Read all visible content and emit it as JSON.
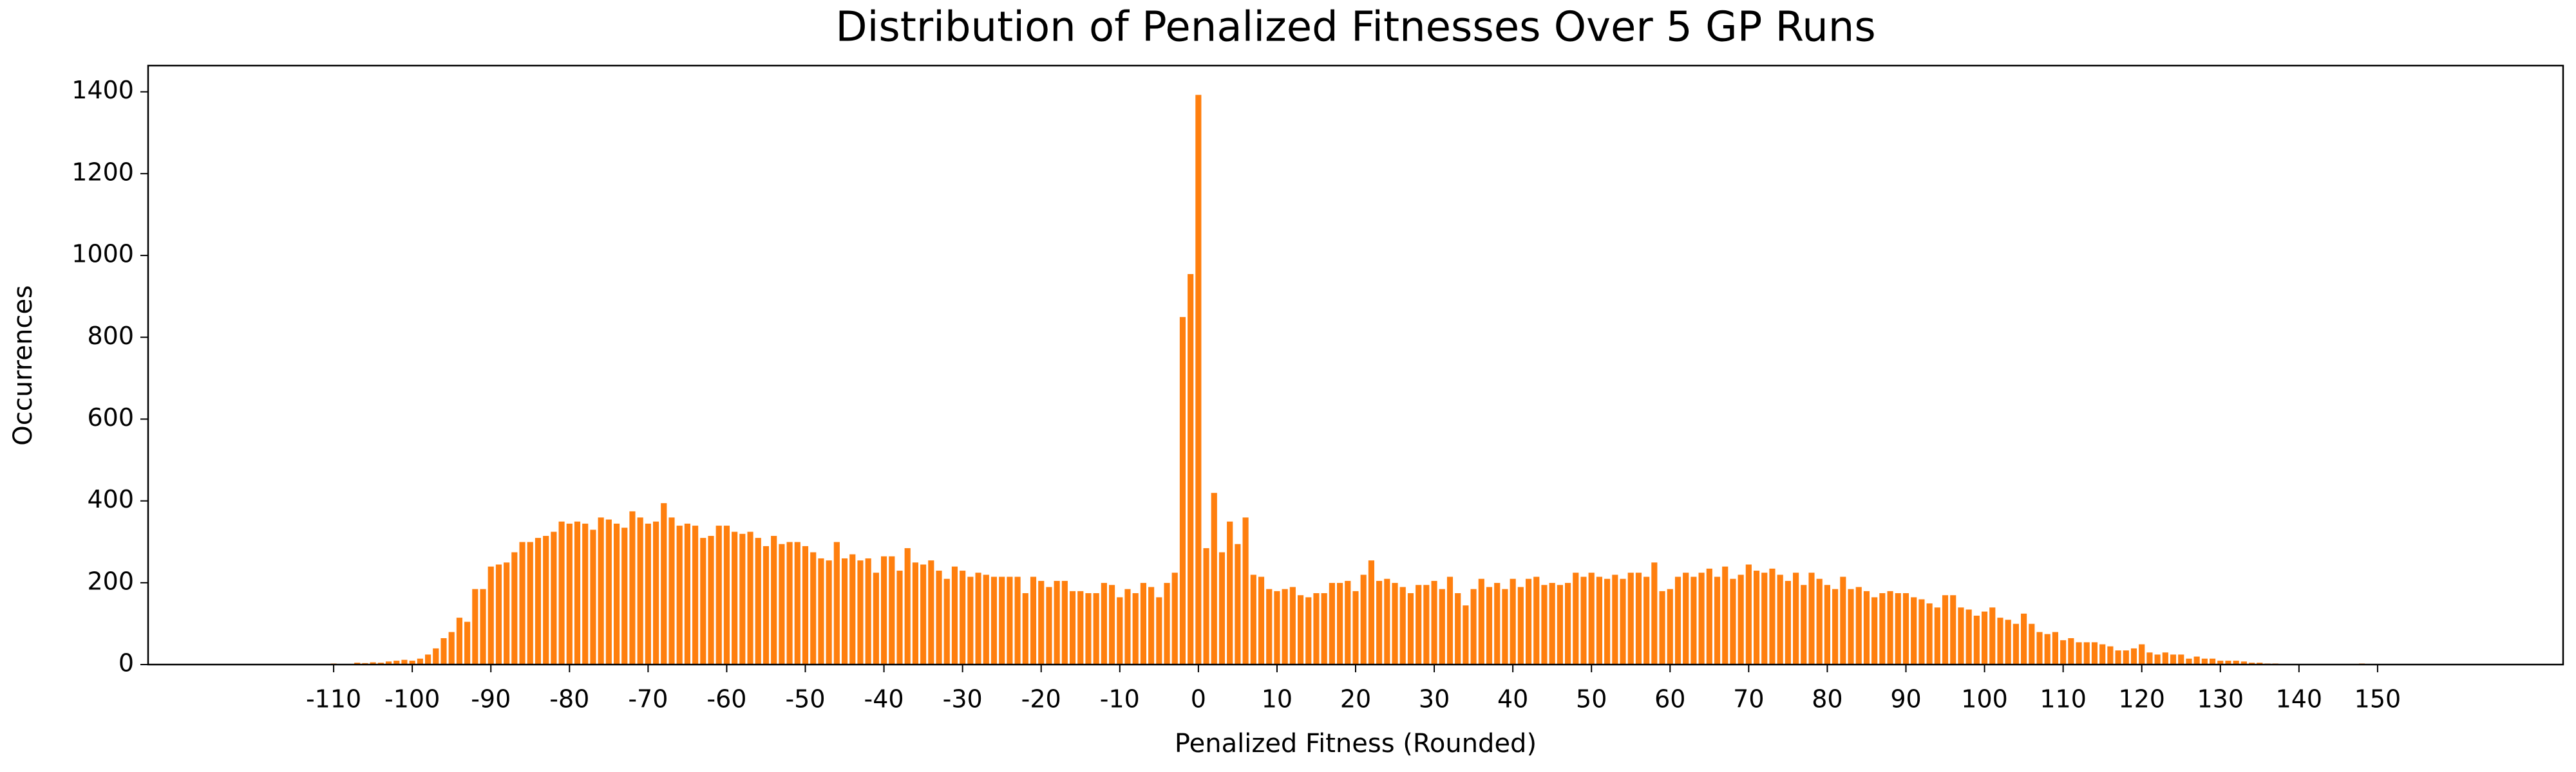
{
  "chart_data": {
    "type": "bar",
    "title": "Distribution of Penalized Fitnesses Over 5 GP Runs",
    "x_label": "Penalized Fitness (Rounded)",
    "y_label": "Occurrences",
    "color": "#ff7f0e",
    "x": [
      -110,
      -109,
      -108,
      -107,
      -106,
      -105,
      -104,
      -103,
      -102,
      -101,
      -100,
      -99,
      -98,
      -97,
      -96,
      -95,
      -94,
      -93,
      -92,
      -91,
      -90,
      -89,
      -88,
      -87,
      -86,
      -85,
      -84,
      -83,
      -82,
      -81,
      -80,
      -79,
      -78,
      -77,
      -76,
      -75,
      -74,
      -73,
      -72,
      -71,
      -70,
      -69,
      -68,
      -67,
      -66,
      -65,
      -64,
      -63,
      -62,
      -61,
      -60,
      -59,
      -58,
      -57,
      -56,
      -55,
      -54,
      -53,
      -52,
      -51,
      -50,
      -49,
      -48,
      -47,
      -46,
      -45,
      -44,
      -43,
      -42,
      -41,
      -40,
      -39,
      -38,
      -37,
      -36,
      -35,
      -34,
      -33,
      -32,
      -31,
      -30,
      -29,
      -28,
      -27,
      -26,
      -25,
      -24,
      -23,
      -22,
      -21,
      -20,
      -19,
      -18,
      -17,
      -16,
      -15,
      -14,
      -13,
      -12,
      -11,
      -10,
      -9,
      -8,
      -7,
      -6,
      -5,
      -4,
      -3,
      -2,
      -1,
      0,
      1,
      2,
      3,
      4,
      5,
      6,
      7,
      8,
      9,
      10,
      11,
      12,
      13,
      14,
      15,
      16,
      17,
      18,
      19,
      20,
      21,
      22,
      23,
      24,
      25,
      26,
      27,
      28,
      29,
      30,
      31,
      32,
      33,
      34,
      35,
      36,
      37,
      38,
      39,
      40,
      41,
      42,
      43,
      44,
      45,
      46,
      47,
      48,
      49,
      50,
      51,
      52,
      53,
      54,
      55,
      56,
      57,
      58,
      59,
      60,
      61,
      62,
      63,
      64,
      65,
      66,
      67,
      68,
      69,
      70,
      71,
      72,
      73,
      74,
      75,
      76,
      77,
      78,
      79,
      80,
      81,
      82,
      83,
      84,
      85,
      86,
      87,
      88,
      89,
      90,
      91,
      92,
      93,
      94,
      95,
      96,
      97,
      98,
      99,
      100,
      101,
      102,
      103,
      104,
      105,
      106,
      107,
      108,
      109,
      110,
      111,
      112,
      113,
      114,
      115,
      116,
      117,
      118,
      119,
      120,
      121,
      122,
      123,
      124,
      125,
      126,
      127,
      128,
      129,
      130,
      131,
      132,
      133,
      134,
      135,
      136,
      137,
      138,
      139,
      140,
      141,
      142,
      143,
      144,
      145,
      146,
      147,
      148,
      149,
      150
    ],
    "values": [
      3,
      0,
      2,
      5,
      4,
      6,
      5,
      8,
      10,
      12,
      10,
      15,
      25,
      40,
      65,
      80,
      115,
      105,
      185,
      185,
      240,
      245,
      250,
      275,
      300,
      300,
      310,
      315,
      325,
      350,
      345,
      350,
      345,
      330,
      360,
      355,
      345,
      335,
      375,
      360,
      345,
      350,
      395,
      360,
      340,
      345,
      340,
      310,
      315,
      340,
      340,
      325,
      320,
      325,
      310,
      290,
      315,
      295,
      300,
      300,
      290,
      275,
      260,
      255,
      300,
      260,
      270,
      255,
      260,
      225,
      265,
      265,
      230,
      285,
      250,
      245,
      255,
      230,
      210,
      240,
      230,
      215,
      225,
      220,
      215,
      215,
      215,
      215,
      175,
      215,
      205,
      190,
      205,
      205,
      180,
      180,
      175,
      175,
      200,
      195,
      165,
      185,
      175,
      200,
      190,
      165,
      200,
      225,
      850,
      955,
      1393,
      285,
      420,
      275,
      350,
      295,
      360,
      220,
      215,
      185,
      180,
      185,
      190,
      170,
      165,
      175,
      175,
      200,
      200,
      205,
      180,
      220,
      255,
      205,
      210,
      200,
      190,
      175,
      195,
      195,
      205,
      185,
      215,
      175,
      145,
      185,
      210,
      190,
      200,
      185,
      210,
      190,
      210,
      215,
      195,
      200,
      195,
      200,
      225,
      215,
      225,
      215,
      210,
      220,
      210,
      225,
      225,
      215,
      250,
      180,
      185,
      215,
      225,
      215,
      225,
      235,
      215,
      240,
      210,
      220,
      245,
      230,
      225,
      235,
      220,
      205,
      225,
      195,
      225,
      210,
      195,
      185,
      215,
      185,
      190,
      180,
      165,
      175,
      180,
      175,
      175,
      165,
      160,
      150,
      140,
      170,
      170,
      140,
      135,
      120,
      130,
      140,
      115,
      110,
      100,
      125,
      100,
      80,
      75,
      80,
      60,
      65,
      55,
      55,
      55,
      50,
      45,
      35,
      35,
      40,
      50,
      30,
      25,
      30,
      25,
      25,
      15,
      20,
      15,
      15,
      10,
      10,
      10,
      8,
      5,
      5,
      3,
      3,
      2,
      1,
      1,
      1,
      0,
      0,
      1,
      0,
      0,
      1,
      3,
      1,
      1
    ],
    "xlim": [
      -133.6,
      173.6
    ],
    "ylim": [
      0,
      1464
    ],
    "xticks": [
      -110,
      -100,
      -90,
      -80,
      -70,
      -60,
      -50,
      -40,
      -30,
      -20,
      -10,
      0,
      10,
      20,
      30,
      40,
      50,
      60,
      70,
      80,
      90,
      100,
      110,
      120,
      130,
      140,
      150
    ],
    "yticks": [
      0,
      200,
      400,
      600,
      800,
      1000,
      1200,
      1400
    ]
  }
}
